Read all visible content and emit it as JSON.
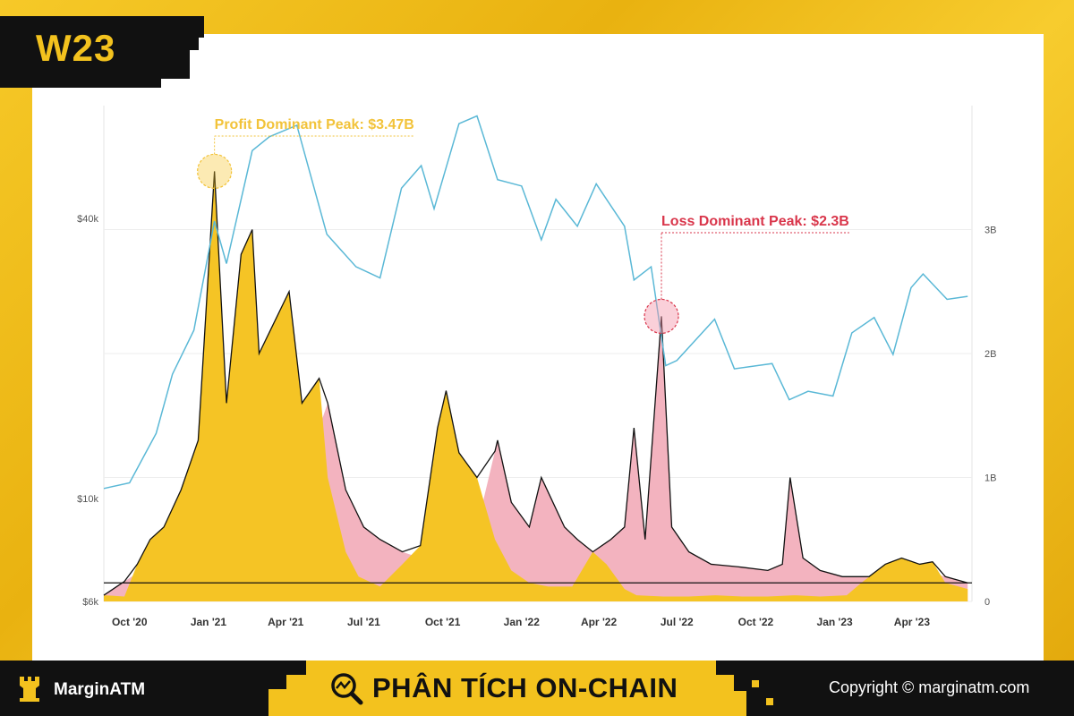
{
  "week_label": "W23",
  "footer": {
    "brand": "MarginATM",
    "banner": "PHÂN TÍCH ON-CHAIN",
    "copyright": "Copyright © marginatm.com"
  },
  "colors": {
    "price": "#5ab8d6",
    "profit": "#f5c425",
    "loss": "#f3b3bf",
    "outline": "#111111",
    "brand_yellow": "#f3c21e"
  },
  "chart_data": {
    "type": "area",
    "title": "",
    "xlabel": "",
    "ylabel": "",
    "x_ticks": [
      "Oct '20",
      "Jan '21",
      "Apr '21",
      "Jul '21",
      "Oct '21",
      "Jan '22",
      "Apr '22",
      "Jul '22",
      "Oct '22",
      "Jan '23",
      "Apr '23"
    ],
    "y_left": {
      "ticks": [
        "$6k",
        "$10k",
        "$40k"
      ],
      "values": [
        6000,
        10000,
        40000
      ],
      "scale": "log",
      "range": [
        6000,
        70000
      ]
    },
    "y_right": {
      "ticks": [
        "0",
        "1B",
        "2B",
        "3B"
      ],
      "values": [
        0,
        1000000000,
        2000000000,
        3000000000
      ],
      "range": [
        0,
        4000000000
      ]
    },
    "annotations": [
      {
        "text": "Profit Dominant Peak: $3.47B",
        "value": 3470000000,
        "date": "2021-01-08",
        "kind": "profit"
      },
      {
        "text": "Loss Dominant Peak: $2.3B",
        "value": 2300000000,
        "date": "2022-06-13",
        "kind": "loss"
      }
    ],
    "threshold_line": 150000000,
    "series": [
      {
        "key": "price",
        "axis": "left",
        "x": [
          "2020-09-01",
          "2020-10-01",
          "2020-11-01",
          "2020-11-20",
          "2020-12-15",
          "2021-01-08",
          "2021-01-22",
          "2021-02-21",
          "2021-03-13",
          "2021-04-14",
          "2021-05-19",
          "2021-06-22",
          "2021-07-20",
          "2021-08-14",
          "2021-09-06",
          "2021-09-21",
          "2021-10-20",
          "2021-11-10",
          "2021-12-04",
          "2022-01-01",
          "2022-01-24",
          "2022-02-10",
          "2022-03-07",
          "2022-03-29",
          "2022-05-01",
          "2022-05-12",
          "2022-06-01",
          "2022-06-18",
          "2022-07-01",
          "2022-08-14",
          "2022-09-06",
          "2022-10-20",
          "2022-11-09",
          "2022-12-01",
          "2022-12-30",
          "2023-01-21",
          "2023-02-16",
          "2023-03-10",
          "2023-03-31",
          "2023-04-14",
          "2023-05-12",
          "2023-06-05"
        ],
        "values": [
          10500,
          10800,
          13800,
          18500,
          23000,
          39500,
          32000,
          56000,
          60000,
          63500,
          37000,
          31500,
          29800,
          46500,
          52000,
          42000,
          64000,
          66500,
          48500,
          47000,
          36000,
          44000,
          38500,
          47500,
          38500,
          29500,
          31500,
          19300,
          19800,
          24300,
          19000,
          19500,
          16300,
          17000,
          16600,
          22700,
          24500,
          20400,
          28400,
          30400,
          26800,
          27200
        ]
      },
      {
        "key": "profit",
        "axis": "right",
        "x": [
          "2020-09-01",
          "2020-09-25",
          "2020-10-10",
          "2020-10-25",
          "2020-11-10",
          "2020-11-30",
          "2020-12-20",
          "2021-01-08",
          "2021-01-22",
          "2021-02-08",
          "2021-02-21",
          "2021-03-01",
          "2021-03-15",
          "2021-04-05",
          "2021-04-20",
          "2021-05-10",
          "2021-05-20",
          "2021-06-10",
          "2021-06-25",
          "2021-07-20",
          "2021-08-15",
          "2021-09-05",
          "2021-09-25",
          "2021-10-05",
          "2021-10-20",
          "2021-11-10",
          "2021-12-01",
          "2021-12-20",
          "2022-01-10",
          "2022-02-01",
          "2022-03-01",
          "2022-03-25",
          "2022-04-10",
          "2022-05-01",
          "2022-05-15",
          "2022-06-15",
          "2022-07-15",
          "2022-08-15",
          "2022-09-15",
          "2022-10-15",
          "2022-11-15",
          "2022-12-15",
          "2023-01-15",
          "2023-02-01",
          "2023-03-01",
          "2023-03-20",
          "2023-04-10",
          "2023-04-25",
          "2023-05-10",
          "2023-06-05"
        ],
        "values": [
          0.05,
          0.04,
          0.3,
          0.5,
          0.6,
          0.9,
          1.3,
          3.47,
          1.6,
          2.8,
          3.0,
          2.0,
          2.2,
          2.5,
          1.6,
          1.8,
          1.0,
          0.4,
          0.2,
          0.12,
          0.3,
          0.45,
          1.4,
          1.7,
          1.2,
          1.0,
          0.5,
          0.25,
          0.15,
          0.12,
          0.12,
          0.4,
          0.3,
          0.1,
          0.05,
          0.04,
          0.04,
          0.05,
          0.04,
          0.04,
          0.05,
          0.04,
          0.05,
          0.15,
          0.3,
          0.35,
          0.3,
          0.32,
          0.15,
          0.1
        ]
      },
      {
        "key": "loss",
        "axis": "right",
        "x": [
          "2020-09-01",
          "2020-10-25",
          "2020-12-20",
          "2021-01-22",
          "2021-03-15",
          "2021-05-10",
          "2021-05-20",
          "2021-06-10",
          "2021-07-01",
          "2021-07-20",
          "2021-08-15",
          "2021-09-05",
          "2021-09-25",
          "2021-10-20",
          "2021-11-10",
          "2021-12-04",
          "2021-12-20",
          "2022-01-10",
          "2022-01-24",
          "2022-02-20",
          "2022-03-07",
          "2022-03-25",
          "2022-04-15",
          "2022-05-01",
          "2022-05-12",
          "2022-05-25",
          "2022-06-13",
          "2022-06-25",
          "2022-07-15",
          "2022-08-10",
          "2022-09-10",
          "2022-10-15",
          "2022-11-01",
          "2022-11-10",
          "2022-11-25",
          "2022-12-15",
          "2023-01-10",
          "2023-02-10",
          "2023-03-10",
          "2023-04-10",
          "2023-05-10",
          "2023-06-05"
        ],
        "values": [
          0.05,
          0.3,
          0.8,
          1.0,
          1.2,
          1.4,
          1.6,
          0.9,
          0.6,
          0.5,
          0.4,
          0.35,
          0.6,
          0.7,
          0.6,
          1.3,
          0.8,
          0.6,
          1.0,
          0.6,
          0.5,
          0.4,
          0.5,
          0.6,
          1.4,
          0.5,
          2.3,
          0.6,
          0.4,
          0.3,
          0.28,
          0.25,
          0.3,
          1.0,
          0.35,
          0.25,
          0.2,
          0.2,
          0.2,
          0.25,
          0.2,
          0.15
        ]
      }
    ]
  }
}
